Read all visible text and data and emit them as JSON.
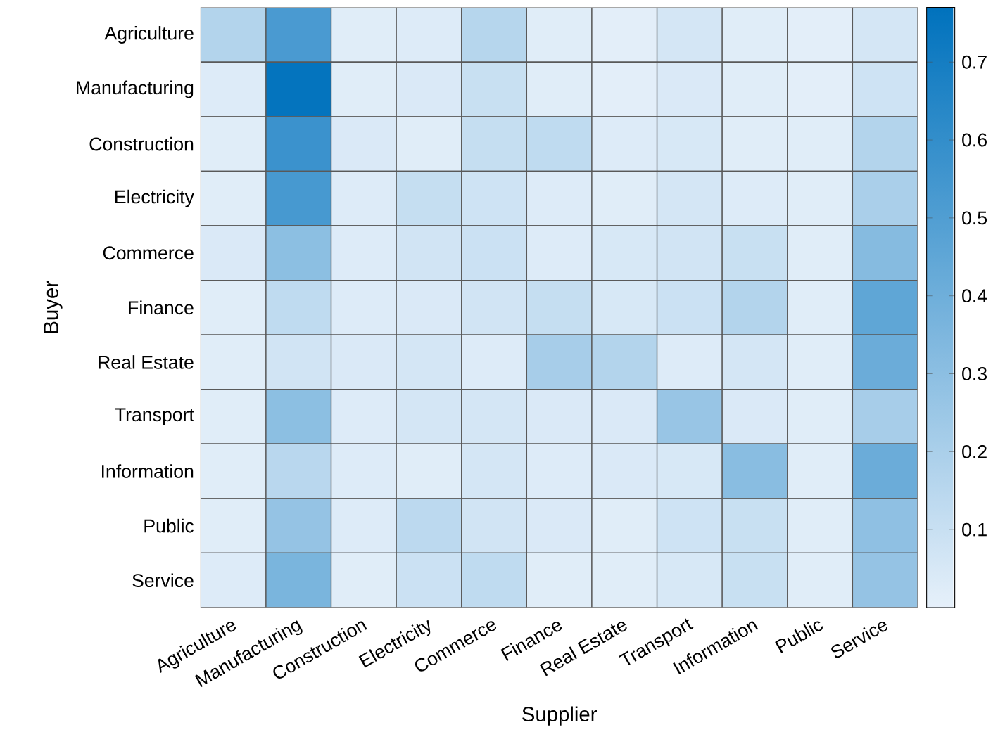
{
  "chart_data": {
    "type": "heatmap",
    "xlabel": "Supplier",
    "ylabel": "Buyer",
    "categories": [
      "Agriculture",
      "Manufacturing",
      "Construction",
      "Electricity",
      "Commerce",
      "Finance",
      "Real Estate",
      "Transport",
      "Information",
      "Public",
      "Service"
    ],
    "y_categories": [
      "Agriculture",
      "Manufacturing",
      "Construction",
      "Electricity",
      "Commerce",
      "Finance",
      "Real Estate",
      "Transport",
      "Information",
      "Public",
      "Service"
    ],
    "cells": [
      [
        0.17,
        0.52,
        0.02,
        0.03,
        0.16,
        0.02,
        0.01,
        0.06,
        0.02,
        0.01,
        0.06
      ],
      [
        0.03,
        0.75,
        0.02,
        0.04,
        0.1,
        0.02,
        0.01,
        0.04,
        0.02,
        0.01,
        0.08
      ],
      [
        0.02,
        0.57,
        0.04,
        0.02,
        0.11,
        0.13,
        0.03,
        0.05,
        0.02,
        0.02,
        0.17
      ],
      [
        0.02,
        0.53,
        0.03,
        0.11,
        0.08,
        0.03,
        0.02,
        0.06,
        0.03,
        0.02,
        0.2
      ],
      [
        0.04,
        0.3,
        0.03,
        0.07,
        0.09,
        0.03,
        0.05,
        0.07,
        0.1,
        0.02,
        0.32
      ],
      [
        0.02,
        0.13,
        0.03,
        0.04,
        0.07,
        0.11,
        0.05,
        0.09,
        0.17,
        0.02,
        0.45
      ],
      [
        0.02,
        0.07,
        0.04,
        0.06,
        0.03,
        0.21,
        0.17,
        0.03,
        0.06,
        0.02,
        0.41
      ],
      [
        0.02,
        0.3,
        0.03,
        0.06,
        0.06,
        0.04,
        0.04,
        0.26,
        0.04,
        0.02,
        0.21
      ],
      [
        0.02,
        0.15,
        0.03,
        0.02,
        0.06,
        0.03,
        0.04,
        0.05,
        0.31,
        0.02,
        0.41
      ],
      [
        0.02,
        0.27,
        0.03,
        0.14,
        0.07,
        0.04,
        0.02,
        0.08,
        0.1,
        0.02,
        0.29
      ],
      [
        0.03,
        0.36,
        0.02,
        0.09,
        0.13,
        0.02,
        0.02,
        0.05,
        0.1,
        0.02,
        0.27
      ]
    ],
    "clim": [
      0,
      0.77
    ],
    "cticks": [
      0.1,
      0.2,
      0.3,
      0.4,
      0.5,
      0.6,
      0.7
    ]
  }
}
